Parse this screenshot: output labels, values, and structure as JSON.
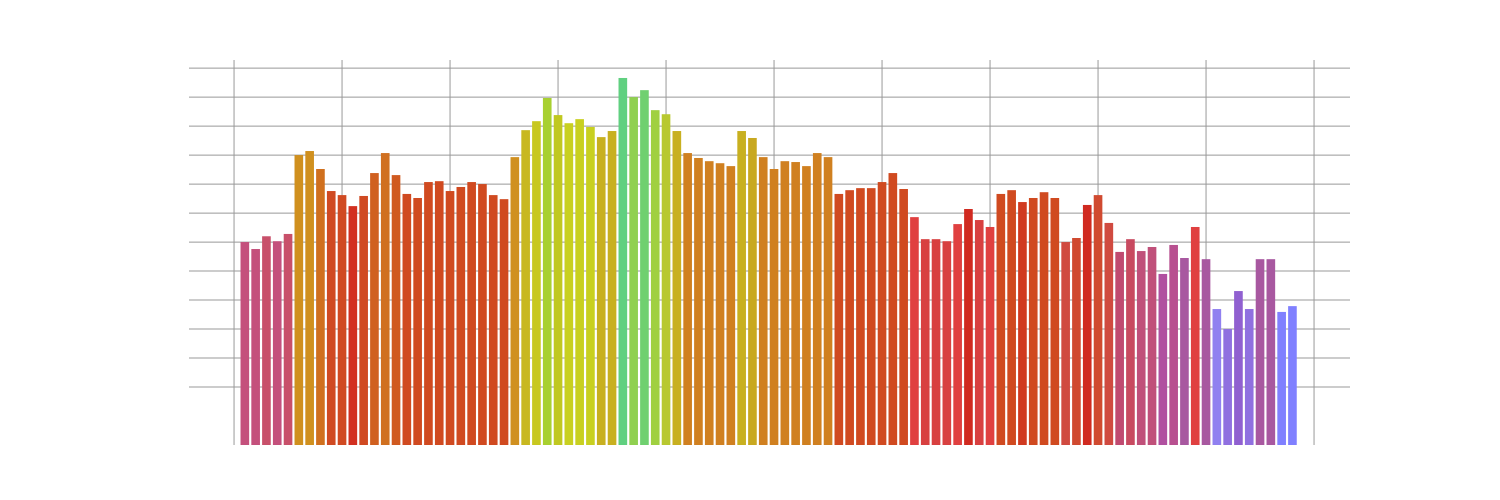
{
  "chart_data": {
    "type": "bar",
    "grid": true,
    "x": [
      1,
      2,
      3,
      4,
      5,
      6,
      7,
      8,
      9,
      10,
      11,
      12,
      13,
      14,
      15,
      16,
      17,
      18,
      19,
      20,
      21,
      22,
      23,
      24,
      25,
      26,
      27,
      28,
      29,
      30,
      31,
      32,
      33,
      34,
      35,
      36,
      37,
      38,
      39,
      40,
      41,
      42,
      43,
      44,
      45,
      46,
      47,
      48,
      49,
      50,
      51,
      52,
      53,
      54,
      55,
      56,
      57,
      58,
      59,
      60,
      61,
      62,
      63,
      64,
      65,
      66,
      67,
      68,
      69,
      70,
      71,
      72,
      73,
      74,
      75,
      76,
      77,
      78,
      79,
      80,
      81,
      82,
      83,
      84,
      85,
      86,
      87,
      88,
      89,
      90,
      91,
      92,
      93,
      94,
      95,
      96,
      97,
      98
    ],
    "values": [
      7.0,
      6.76,
      7.2,
      7.03,
      7.28,
      10.0,
      10.14,
      9.52,
      8.76,
      8.62,
      8.24,
      8.59,
      9.38,
      10.07,
      9.31,
      8.66,
      8.52,
      9.07,
      9.1,
      8.76,
      8.9,
      9.07,
      9.0,
      8.62,
      8.48,
      9.93,
      10.86,
      11.17,
      11.97,
      11.38,
      11.1,
      11.24,
      10.97,
      10.62,
      10.83,
      12.66,
      12.0,
      12.24,
      11.55,
      11.41,
      10.83,
      10.07,
      9.9,
      9.79,
      9.72,
      9.62,
      10.83,
      10.59,
      9.93,
      9.52,
      9.79,
      9.76,
      9.62,
      10.07,
      9.93,
      8.66,
      8.79,
      8.86,
      8.86,
      9.07,
      9.38,
      8.83,
      7.86,
      7.1,
      7.1,
      7.03,
      7.62,
      8.14,
      7.76,
      7.52,
      8.66,
      8.79,
      8.38,
      8.52,
      8.72,
      8.52,
      7.0,
      7.14,
      8.28,
      8.62,
      7.66,
      6.66,
      7.1,
      6.69,
      6.83,
      5.9,
      6.9,
      6.45,
      7.52,
      6.41,
      4.69,
      4.0,
      5.31,
      4.69,
      6.41,
      6.41,
      4.59,
      4.79
    ],
    "colors": [
      "#c4507c",
      "#c4507c",
      "#c8506a",
      "#c4507c",
      "#c8506a",
      "#d0901e",
      "#d0901e",
      "#d0701e",
      "#d04a22",
      "#d04a22",
      "#d23020",
      "#d04a22",
      "#d06020",
      "#d07020",
      "#d05a20",
      "#d04a20",
      "#d04a20",
      "#d04a20",
      "#d04a20",
      "#d04a20",
      "#d04a20",
      "#d04a20",
      "#d04a20",
      "#d04a20",
      "#d04a20",
      "#d09020",
      "#c8b820",
      "#c8c820",
      "#a8d030",
      "#c0c820",
      "#c8d020",
      "#c8d020",
      "#c8d020",
      "#c8b020",
      "#c8b020",
      "#60d080",
      "#90d050",
      "#70d070",
      "#a0d040",
      "#b8c830",
      "#c8b020",
      "#d08020",
      "#d08020",
      "#d08020",
      "#d08020",
      "#d08020",
      "#c8b020",
      "#c8a820",
      "#d08020",
      "#d08020",
      "#d08020",
      "#d08020",
      "#d08020",
      "#d08020",
      "#d08020",
      "#d04a20",
      "#d04a20",
      "#d04a20",
      "#d04a20",
      "#d04a20",
      "#d04a20",
      "#d04a20",
      "#e04040",
      "#d84040",
      "#d84040",
      "#d84040",
      "#e04040",
      "#d02a20",
      "#d84040",
      "#e04040",
      "#d04a20",
      "#d04a20",
      "#d03a20",
      "#d04a20",
      "#d04a20",
      "#d04a20",
      "#d04a40",
      "#d04a30",
      "#d02a20",
      "#d04a30",
      "#d04a40",
      "#c04a70",
      "#c84a60",
      "#c0507a",
      "#c0507a",
      "#b050a0",
      "#b85090",
      "#a858a0",
      "#e04040",
      "#a858a0",
      "#9080f0",
      "#9070e0",
      "#9060d0",
      "#9070e0",
      "#a858a0",
      "#a858a0",
      "#8080ff",
      "#8080ff"
    ],
    "xlim": [
      -4.17,
      103.33
    ],
    "xticks": [
      0,
      10,
      20,
      30,
      40,
      50,
      60,
      70,
      80,
      90,
      100
    ],
    "ylim": [
      0,
      13.28
    ],
    "yticks": [
      2,
      3,
      4,
      5,
      6,
      7,
      8,
      9,
      10,
      11,
      12,
      13
    ]
  }
}
